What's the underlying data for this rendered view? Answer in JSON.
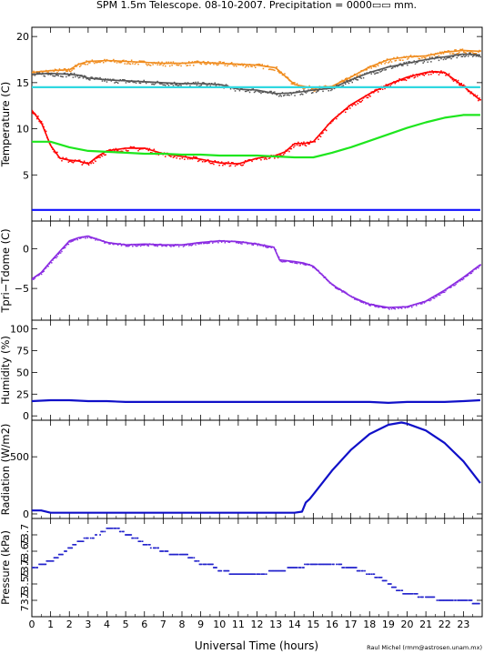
{
  "header": {
    "title": "SPM 1.5m Telescope.  08-10-2007.  Precipitation = 0000▭▭ mm."
  },
  "footer": {
    "xlabel": "Universal Time (hours)",
    "credit": "Raul Michel (rmm@astrosen.unam.mx)"
  },
  "chart_data": [
    {
      "type": "line",
      "ylabel": "Temperature (C)",
      "xlim": [
        0,
        24
      ],
      "ylim": [
        0,
        21
      ],
      "yticks": [
        5,
        10,
        15,
        20
      ],
      "series": [
        {
          "color": "#f08c1e",
          "style": "dots",
          "x": [
            0,
            1,
            2,
            2.5,
            3,
            4,
            5,
            6,
            7,
            8,
            9,
            10,
            11,
            12,
            13,
            14,
            15,
            16,
            17,
            18,
            19,
            20,
            21,
            22,
            23,
            23.9
          ],
          "y": [
            16.1,
            16.3,
            16.4,
            17.0,
            17.3,
            17.4,
            17.3,
            17.2,
            17.1,
            17.1,
            17.2,
            17.1,
            17.0,
            16.9,
            16.6,
            14.8,
            14.4,
            14.6,
            15.6,
            16.7,
            17.5,
            17.8,
            17.9,
            18.3,
            18.5,
            18.4
          ]
        },
        {
          "color": "#555555",
          "style": "dots",
          "x": [
            0,
            1,
            2,
            2.5,
            3,
            4,
            5,
            6,
            7,
            8,
            9,
            10,
            11,
            12,
            13,
            14,
            15,
            16,
            17,
            18,
            19,
            20,
            21,
            22,
            23,
            23.9
          ],
          "y": [
            15.9,
            16.0,
            15.9,
            15.8,
            15.5,
            15.3,
            15.2,
            15.1,
            15.0,
            14.9,
            14.9,
            14.8,
            14.3,
            14.2,
            13.8,
            13.9,
            14.2,
            14.4,
            15.3,
            16.1,
            16.7,
            17.1,
            17.5,
            17.8,
            18.1,
            18.0
          ]
        },
        {
          "color": "#ff0000",
          "style": "dots",
          "x": [
            0,
            0.5,
            1,
            1.5,
            2,
            2.5,
            3,
            3.5,
            4,
            5,
            6,
            7,
            8,
            9,
            10,
            11,
            12,
            13,
            13.5,
            14,
            14.5,
            15,
            16,
            17,
            18,
            19,
            20,
            21,
            21.5,
            22,
            23,
            23.9
          ],
          "y": [
            12.0,
            10.7,
            8.2,
            6.8,
            6.6,
            6.5,
            6.2,
            7.0,
            7.6,
            7.9,
            7.9,
            7.3,
            7.0,
            6.7,
            6.3,
            6.2,
            6.8,
            7.1,
            7.5,
            8.4,
            8.4,
            8.6,
            10.9,
            12.6,
            13.8,
            14.8,
            15.6,
            16.1,
            16.2,
            16.1,
            14.6,
            13.1
          ]
        },
        {
          "color": "#1ee61e",
          "style": "line",
          "x": [
            0,
            1,
            2,
            3,
            4,
            5,
            6,
            7,
            8,
            9,
            10,
            11,
            12,
            13,
            14,
            15,
            16,
            17,
            18,
            19,
            20,
            21,
            22,
            23,
            23.9
          ],
          "y": [
            8.6,
            8.6,
            8.0,
            7.6,
            7.5,
            7.4,
            7.3,
            7.3,
            7.2,
            7.2,
            7.1,
            7.1,
            7.1,
            7.0,
            6.9,
            6.9,
            7.4,
            8.0,
            8.7,
            9.4,
            10.1,
            10.7,
            11.2,
            11.5,
            11.5
          ]
        },
        {
          "color": "#30d8e0",
          "style": "line",
          "x": [
            0,
            23.9
          ],
          "y": [
            14.5,
            14.5
          ]
        },
        {
          "color": "#1010ff",
          "style": "line",
          "x": [
            0,
            23.9
          ],
          "y": [
            1.2,
            1.2
          ]
        }
      ]
    },
    {
      "type": "line",
      "ylabel": "Tpri−Tdome (C)",
      "xlim": [
        0,
        24
      ],
      "ylim": [
        -9,
        3.5
      ],
      "yticks": [
        0,
        -5
      ],
      "series": [
        {
          "color": "#8a2be2",
          "style": "dots",
          "x": [
            0,
            0.5,
            1,
            1.5,
            2,
            2.5,
            3,
            3.5,
            4,
            5,
            6,
            7,
            8,
            9,
            10,
            11,
            12,
            12.9,
            13.2,
            14,
            14.5,
            15,
            16,
            17,
            18,
            19,
            20,
            21,
            22,
            23,
            23.9
          ],
          "y": [
            -3.8,
            -3.0,
            -1.6,
            -0.3,
            1.0,
            1.4,
            1.6,
            1.2,
            0.8,
            0.5,
            0.6,
            0.5,
            0.5,
            0.8,
            1.0,
            0.9,
            0.6,
            0.2,
            -1.4,
            -1.6,
            -1.8,
            -2.2,
            -4.5,
            -6.0,
            -7.0,
            -7.4,
            -7.3,
            -6.6,
            -5.2,
            -3.6,
            -2.0
          ]
        }
      ]
    },
    {
      "type": "line",
      "ylabel": "Humidity (%)",
      "xlim": [
        0,
        24
      ],
      "ylim": [
        -5,
        110
      ],
      "yticks": [
        0,
        25,
        50,
        75,
        100
      ],
      "series": [
        {
          "color": "#1010c8",
          "style": "line",
          "x": [
            0,
            1,
            2,
            3,
            4,
            5,
            6,
            7,
            8,
            9,
            10,
            11,
            12,
            13,
            14,
            15,
            16,
            17,
            18,
            19,
            20,
            21,
            22,
            23,
            23.9
          ],
          "y": [
            17,
            18,
            18,
            17,
            17,
            16,
            16,
            16,
            16,
            16,
            16,
            16,
            16,
            16,
            16,
            16,
            16,
            16,
            16,
            15,
            16,
            16,
            16,
            17,
            18
          ]
        }
      ]
    },
    {
      "type": "line",
      "ylabel": "Radiation (W/m2)",
      "xlim": [
        0,
        24
      ],
      "ylim": [
        -40,
        820
      ],
      "yticks": [
        0,
        500
      ],
      "series": [
        {
          "color": "#1010c8",
          "style": "line",
          "x": [
            0,
            0.5,
            1,
            2,
            4,
            6,
            8,
            10,
            12,
            14,
            14.4,
            14.6,
            14.8,
            15,
            16,
            17,
            18,
            19,
            19.7,
            20,
            21,
            22,
            23,
            23.9
          ],
          "y": [
            30,
            30,
            10,
            10,
            10,
            10,
            10,
            10,
            10,
            10,
            20,
            100,
            130,
            170,
            380,
            560,
            700,
            780,
            800,
            790,
            730,
            620,
            460,
            270
          ]
        }
      ]
    },
    {
      "type": "scatter",
      "ylabel": "Pressure (kPa)",
      "xlim": [
        0,
        24
      ],
      "ylim": [
        73.45,
        73.75
      ],
      "yticks": [
        73.5,
        73.55,
        73.6,
        73.65,
        73.7
      ],
      "yticklabels": [
        "73.5",
        "73.55",
        "73.6",
        "73.65",
        "73.7"
      ],
      "series": [
        {
          "color": "#2222cc",
          "style": "steps",
          "x": [
            0,
            0.5,
            1,
            1.5,
            2,
            2.5,
            3,
            3.5,
            4,
            4.5,
            5,
            5.5,
            6,
            6.5,
            7,
            7.5,
            8,
            8.5,
            9,
            9.5,
            10,
            11,
            12,
            13,
            14,
            15,
            16,
            17,
            18,
            18.5,
            19,
            19.5,
            20,
            21,
            22,
            23,
            23.9
          ],
          "y": [
            73.6,
            73.61,
            73.62,
            73.64,
            73.66,
            73.68,
            73.69,
            73.7,
            73.72,
            73.72,
            73.7,
            73.69,
            73.67,
            73.66,
            73.65,
            73.64,
            73.64,
            73.63,
            73.61,
            73.61,
            73.59,
            73.58,
            73.58,
            73.59,
            73.6,
            73.61,
            73.61,
            73.6,
            73.58,
            73.57,
            73.55,
            73.53,
            73.52,
            73.51,
            73.5,
            73.5,
            73.49
          ]
        }
      ]
    }
  ],
  "x_axis": {
    "ticks": [
      0,
      1,
      2,
      3,
      4,
      5,
      6,
      7,
      8,
      9,
      10,
      11,
      12,
      13,
      14,
      15,
      16,
      17,
      18,
      19,
      20,
      21,
      22,
      23
    ],
    "ticklabels": [
      "0",
      "1",
      "2",
      "3",
      "4",
      "5",
      "6",
      "7",
      "8",
      "9",
      "10",
      "11",
      "12",
      "13",
      "14",
      "15",
      "16",
      "17",
      "18",
      "19",
      "20",
      "21",
      "22",
      "23"
    ]
  }
}
